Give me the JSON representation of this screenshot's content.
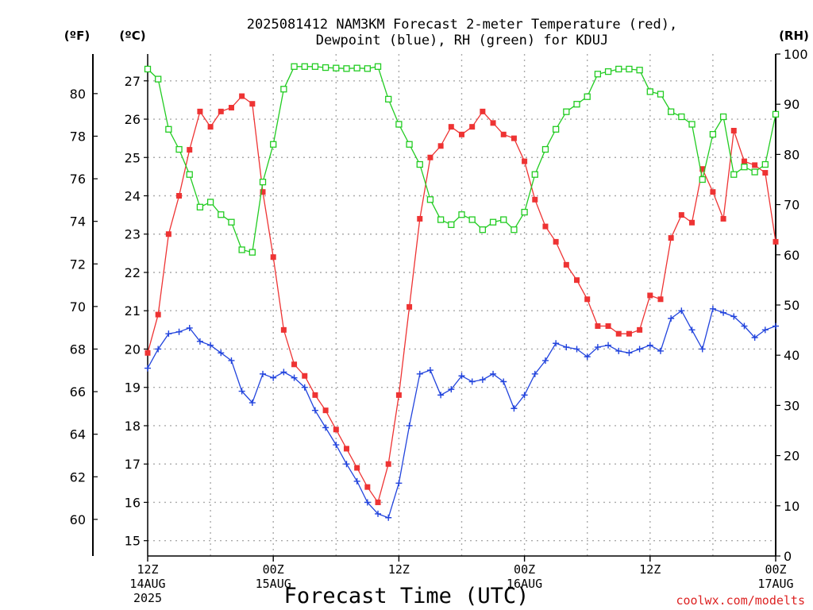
{
  "chart_data": {
    "type": "line",
    "title_line1": "2025081412 NAM3KM Forecast 2-meter Temperature (red),",
    "title_line2": "Dewpoint (blue), RH (green) for KDUJ",
    "xlabel": "Forecast Time (UTC)",
    "credit": "coolwx.com/modelts",
    "unit_left_outer": "(ºF)",
    "unit_left_inner": "(ºC)",
    "unit_right": "(RH)",
    "x_range_hours": [
      0,
      60
    ],
    "ylim_c": [
      14.6,
      27.7
    ],
    "ylim_rh": [
      0,
      100
    ],
    "grid": true,
    "x_ticks": [
      {
        "hour": 0,
        "line1": "12Z",
        "line2": "14AUG",
        "line3": "2025"
      },
      {
        "hour": 12,
        "line1": "00Z",
        "line2": "15AUG",
        "line3": ""
      },
      {
        "hour": 24,
        "line1": "12Z",
        "line2": "",
        "line3": ""
      },
      {
        "hour": 36,
        "line1": "00Z",
        "line2": "16AUG",
        "line3": ""
      },
      {
        "hour": 48,
        "line1": "12Z",
        "line2": "",
        "line3": ""
      },
      {
        "hour": 60,
        "line1": "00Z",
        "line2": "17AUG",
        "line3": ""
      }
    ],
    "c_ticks": [
      15,
      16,
      17,
      18,
      19,
      20,
      21,
      22,
      23,
      24,
      25,
      26,
      27
    ],
    "f_ticks": [
      60,
      62,
      64,
      66,
      68,
      70,
      72,
      74,
      76,
      78,
      80
    ],
    "rh_ticks": [
      0,
      10,
      20,
      30,
      40,
      50,
      60,
      70,
      80,
      90,
      100
    ],
    "series": [
      {
        "name": "Temperature",
        "color": "#ee3333",
        "marker": "filled-square",
        "unit": "C",
        "x": [
          0,
          1,
          2,
          3,
          4,
          5,
          6,
          7,
          8,
          9,
          10,
          11,
          12,
          13,
          14,
          15,
          16,
          17,
          18,
          19,
          20,
          21,
          22,
          23,
          24,
          25,
          26,
          27,
          28,
          29,
          30,
          31,
          32,
          33,
          34,
          35,
          36,
          37,
          38,
          39,
          40,
          41,
          42,
          43,
          44,
          45,
          46,
          47,
          48,
          49,
          50,
          51,
          52,
          53,
          54,
          55,
          56,
          57,
          58,
          59,
          60
        ],
        "values": [
          19.9,
          20.9,
          23.0,
          24.0,
          25.2,
          26.2,
          25.8,
          26.2,
          26.3,
          26.6,
          26.4,
          24.1,
          22.4,
          20.5,
          19.6,
          19.3,
          18.8,
          18.4,
          17.9,
          17.4,
          16.9,
          16.4,
          16.0,
          17.0,
          18.8,
          21.1,
          23.4,
          25.0,
          25.3,
          25.8,
          25.6,
          25.8,
          26.2,
          25.9,
          25.6,
          25.5,
          24.9,
          23.9,
          23.2,
          22.8,
          22.2,
          21.8,
          21.3,
          20.6,
          20.6,
          20.4,
          20.4,
          20.5,
          21.4,
          21.3,
          22.9,
          23.5,
          23.3,
          24.7,
          24.1,
          23.4,
          25.7,
          24.9,
          24.8,
          24.6,
          22.8
        ]
      },
      {
        "name": "Dewpoint",
        "color": "#2244dd",
        "marker": "plus",
        "unit": "C",
        "x": [
          0,
          1,
          2,
          3,
          4,
          5,
          6,
          7,
          8,
          9,
          10,
          11,
          12,
          13,
          14,
          15,
          16,
          17,
          18,
          19,
          20,
          21,
          22,
          23,
          24,
          25,
          26,
          27,
          28,
          29,
          30,
          31,
          32,
          33,
          34,
          35,
          36,
          37,
          38,
          39,
          40,
          41,
          42,
          43,
          44,
          45,
          46,
          47,
          48,
          49,
          50,
          51,
          52,
          53,
          54,
          55,
          56,
          57,
          58,
          59,
          60
        ],
        "values": [
          19.5,
          20.0,
          20.4,
          20.45,
          20.55,
          20.2,
          20.1,
          19.9,
          19.7,
          18.9,
          18.6,
          19.35,
          19.25,
          19.4,
          19.25,
          19.0,
          18.4,
          17.95,
          17.5,
          17.0,
          16.55,
          16.0,
          15.7,
          15.6,
          16.5,
          18.0,
          19.35,
          19.45,
          18.8,
          18.95,
          19.3,
          19.15,
          19.2,
          19.35,
          19.15,
          18.45,
          18.8,
          19.35,
          19.7,
          20.15,
          20.05,
          20.0,
          19.8,
          20.05,
          20.1,
          19.95,
          19.9,
          20.0,
          20.1,
          19.95,
          20.8,
          21.0,
          20.5,
          20.0,
          21.05,
          20.95,
          20.85,
          20.6,
          20.3,
          20.5,
          20.6
        ]
      },
      {
        "name": "RH",
        "color": "#22cc22",
        "marker": "open-square",
        "unit": "%",
        "x": [
          0,
          1,
          2,
          3,
          4,
          5,
          6,
          7,
          8,
          9,
          10,
          11,
          12,
          13,
          14,
          15,
          16,
          17,
          18,
          19,
          20,
          21,
          22,
          23,
          24,
          25,
          26,
          27,
          28,
          29,
          30,
          31,
          32,
          33,
          34,
          35,
          36,
          37,
          38,
          39,
          40,
          41,
          42,
          43,
          44,
          45,
          46,
          47,
          48,
          49,
          50,
          51,
          52,
          53,
          54,
          55,
          56,
          57,
          58,
          59,
          60
        ],
        "values": [
          97,
          95,
          85,
          81,
          76,
          69.5,
          70.5,
          68,
          66.5,
          61,
          60.5,
          74.5,
          82,
          93,
          97.5,
          97.5,
          97.5,
          97.3,
          97.2,
          97.1,
          97.2,
          97.1,
          97.5,
          91,
          86,
          82,
          78,
          71,
          67,
          66,
          68,
          67,
          65,
          66.5,
          67,
          65,
          68.5,
          76,
          81,
          85,
          88.5,
          90,
          91.5,
          96,
          96.5,
          97,
          97,
          96.8,
          92.5,
          92,
          88.5,
          87.5,
          86,
          75,
          84,
          87.5,
          76,
          77.5,
          76.5,
          78,
          88
        ]
      }
    ]
  }
}
